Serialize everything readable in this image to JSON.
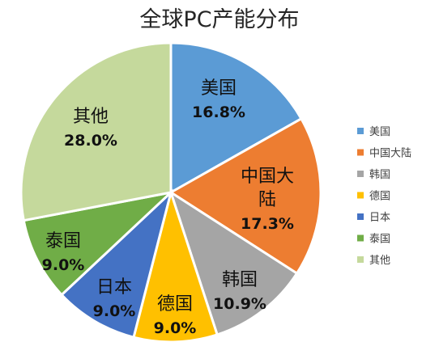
{
  "chart_data": {
    "type": "pie",
    "title": "全球PC产能分布",
    "slices": [
      {
        "label": "美国",
        "value": 16.8,
        "display": "16.8%",
        "color": "#5b9bd5"
      },
      {
        "label": "中国大陆",
        "value": 17.3,
        "display": "17.3%",
        "color": "#ed7d31"
      },
      {
        "label": "韩国",
        "value": 10.9,
        "display": "10.9%",
        "color": "#a5a5a5"
      },
      {
        "label": "德国",
        "value": 9.0,
        "display": "9.0%",
        "color": "#ffc000"
      },
      {
        "label": "日本",
        "value": 9.0,
        "display": "9.0%",
        "color": "#4472c4"
      },
      {
        "label": "泰国",
        "value": 9.0,
        "display": "9.0%",
        "color": "#70ad47"
      },
      {
        "label": "其他",
        "value": 28.0,
        "display": "28.0%",
        "color": "#c5d99c"
      }
    ],
    "legend": {
      "position": "right",
      "entries": [
        "美国",
        "中国大陆",
        "韩国",
        "德国",
        "日本",
        "泰国",
        "其他"
      ]
    }
  }
}
